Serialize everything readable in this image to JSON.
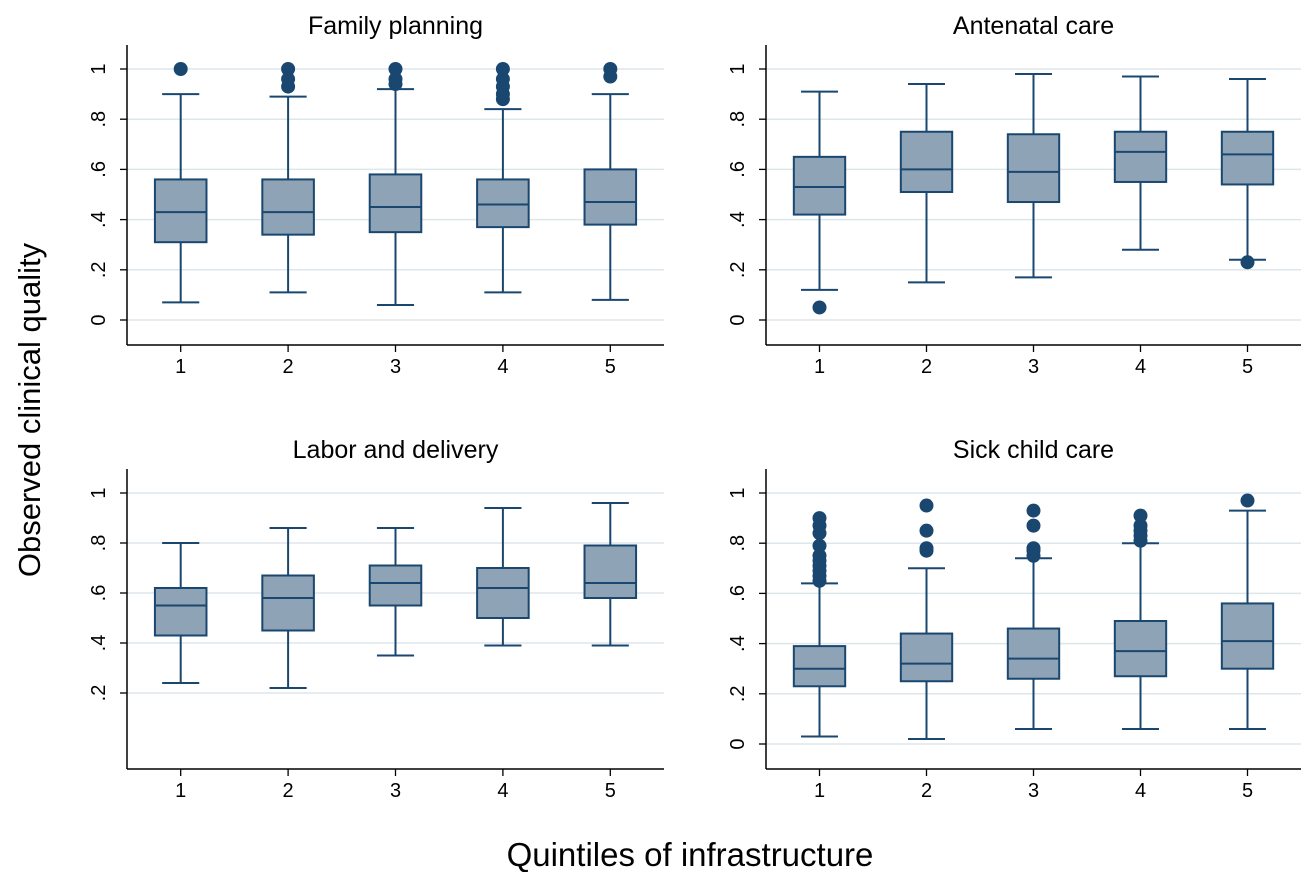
{
  "figure": {
    "ylabel": "Observed clinical quality",
    "xlabel": "Quintiles of infrastructure"
  },
  "colors": {
    "box_fill": "#8ea3b6",
    "line": "#1a476f",
    "outlier": "#1a476f",
    "grid": "#dde6ea",
    "axis": "#000000"
  },
  "chart_data": [
    {
      "type": "box",
      "title": "Family planning",
      "categories": [
        "1",
        "2",
        "3",
        "4",
        "5"
      ],
      "ylim": [
        -0.1,
        1.1
      ],
      "yticks": [
        0,
        0.2,
        0.4,
        0.6,
        0.8,
        1
      ],
      "ytick_labels": [
        "0",
        ".2",
        ".4",
        ".6",
        ".8",
        "1"
      ],
      "grid": true,
      "boxes": [
        {
          "whisker_low": 0.07,
          "q1": 0.31,
          "median": 0.43,
          "q3": 0.56,
          "whisker_high": 0.9,
          "outliers": [
            1.0
          ]
        },
        {
          "whisker_low": 0.11,
          "q1": 0.34,
          "median": 0.43,
          "q3": 0.56,
          "whisker_high": 0.89,
          "outliers": [
            0.93,
            0.96,
            1.0
          ]
        },
        {
          "whisker_low": 0.06,
          "q1": 0.35,
          "median": 0.45,
          "q3": 0.58,
          "whisker_high": 0.92,
          "outliers": [
            0.94,
            0.96,
            1.0
          ]
        },
        {
          "whisker_low": 0.11,
          "q1": 0.37,
          "median": 0.46,
          "q3": 0.56,
          "whisker_high": 0.84,
          "outliers": [
            0.88,
            0.9,
            0.93,
            0.96,
            1.0
          ]
        },
        {
          "whisker_low": 0.08,
          "q1": 0.38,
          "median": 0.47,
          "q3": 0.6,
          "whisker_high": 0.9,
          "outliers": [
            0.97,
            1.0
          ]
        }
      ]
    },
    {
      "type": "box",
      "title": "Antenatal care",
      "categories": [
        "1",
        "2",
        "3",
        "4",
        "5"
      ],
      "ylim": [
        -0.1,
        1.1
      ],
      "yticks": [
        0,
        0.2,
        0.4,
        0.6,
        0.8,
        1
      ],
      "ytick_labels": [
        "0",
        ".2",
        ".4",
        ".6",
        ".8",
        "1"
      ],
      "grid": true,
      "boxes": [
        {
          "whisker_low": 0.12,
          "q1": 0.42,
          "median": 0.53,
          "q3": 0.65,
          "whisker_high": 0.91,
          "outliers": [
            0.05
          ]
        },
        {
          "whisker_low": 0.15,
          "q1": 0.51,
          "median": 0.6,
          "q3": 0.75,
          "whisker_high": 0.94,
          "outliers": []
        },
        {
          "whisker_low": 0.17,
          "q1": 0.47,
          "median": 0.59,
          "q3": 0.74,
          "whisker_high": 0.98,
          "outliers": []
        },
        {
          "whisker_low": 0.28,
          "q1": 0.55,
          "median": 0.67,
          "q3": 0.75,
          "whisker_high": 0.97,
          "outliers": []
        },
        {
          "whisker_low": 0.24,
          "q1": 0.54,
          "median": 0.66,
          "q3": 0.75,
          "whisker_high": 0.96,
          "outliers": [
            0.23
          ]
        }
      ]
    },
    {
      "type": "box",
      "title": "Labor and delivery",
      "categories": [
        "1",
        "2",
        "3",
        "4",
        "5"
      ],
      "ylim": [
        0.1,
        1.1
      ],
      "yticks": [
        0.2,
        0.4,
        0.6,
        0.8,
        1
      ],
      "ytick_labels": [
        ".2",
        ".4",
        ".6",
        ".8",
        "1"
      ],
      "grid": true,
      "boxes": [
        {
          "whisker_low": 0.24,
          "q1": 0.43,
          "median": 0.55,
          "q3": 0.62,
          "whisker_high": 0.8,
          "outliers": []
        },
        {
          "whisker_low": 0.22,
          "q1": 0.45,
          "median": 0.58,
          "q3": 0.67,
          "whisker_high": 0.86,
          "outliers": []
        },
        {
          "whisker_low": 0.35,
          "q1": 0.55,
          "median": 0.64,
          "q3": 0.71,
          "whisker_high": 0.86,
          "outliers": []
        },
        {
          "whisker_low": 0.39,
          "q1": 0.5,
          "median": 0.62,
          "q3": 0.7,
          "whisker_high": 0.94,
          "outliers": []
        },
        {
          "whisker_low": 0.39,
          "q1": 0.58,
          "median": 0.64,
          "q3": 0.79,
          "whisker_high": 0.96,
          "outliers": []
        }
      ]
    },
    {
      "type": "box",
      "title": "Sick child care",
      "categories": [
        "1",
        "2",
        "3",
        "4",
        "5"
      ],
      "ylim": [
        -0.1,
        1.1
      ],
      "yticks": [
        0,
        0.2,
        0.4,
        0.6,
        0.8,
        1
      ],
      "ytick_labels": [
        "0",
        ".2",
        ".4",
        ".6",
        ".8",
        "1"
      ],
      "grid": true,
      "boxes": [
        {
          "whisker_low": 0.03,
          "q1": 0.23,
          "median": 0.3,
          "q3": 0.39,
          "whisker_high": 0.64,
          "outliers": [
            0.65,
            0.67,
            0.69,
            0.71,
            0.73,
            0.75,
            0.79,
            0.84,
            0.87,
            0.9
          ]
        },
        {
          "whisker_low": 0.02,
          "q1": 0.25,
          "median": 0.32,
          "q3": 0.44,
          "whisker_high": 0.7,
          "outliers": [
            0.77,
            0.78,
            0.85,
            0.95
          ]
        },
        {
          "whisker_low": 0.06,
          "q1": 0.26,
          "median": 0.34,
          "q3": 0.46,
          "whisker_high": 0.74,
          "outliers": [
            0.75,
            0.77,
            0.78,
            0.87,
            0.93
          ]
        },
        {
          "whisker_low": 0.06,
          "q1": 0.27,
          "median": 0.37,
          "q3": 0.49,
          "whisker_high": 0.8,
          "outliers": [
            0.81,
            0.83,
            0.85,
            0.87,
            0.91
          ]
        },
        {
          "whisker_low": 0.06,
          "q1": 0.3,
          "median": 0.41,
          "q3": 0.56,
          "whisker_high": 0.93,
          "outliers": [
            0.97
          ]
        }
      ]
    }
  ]
}
